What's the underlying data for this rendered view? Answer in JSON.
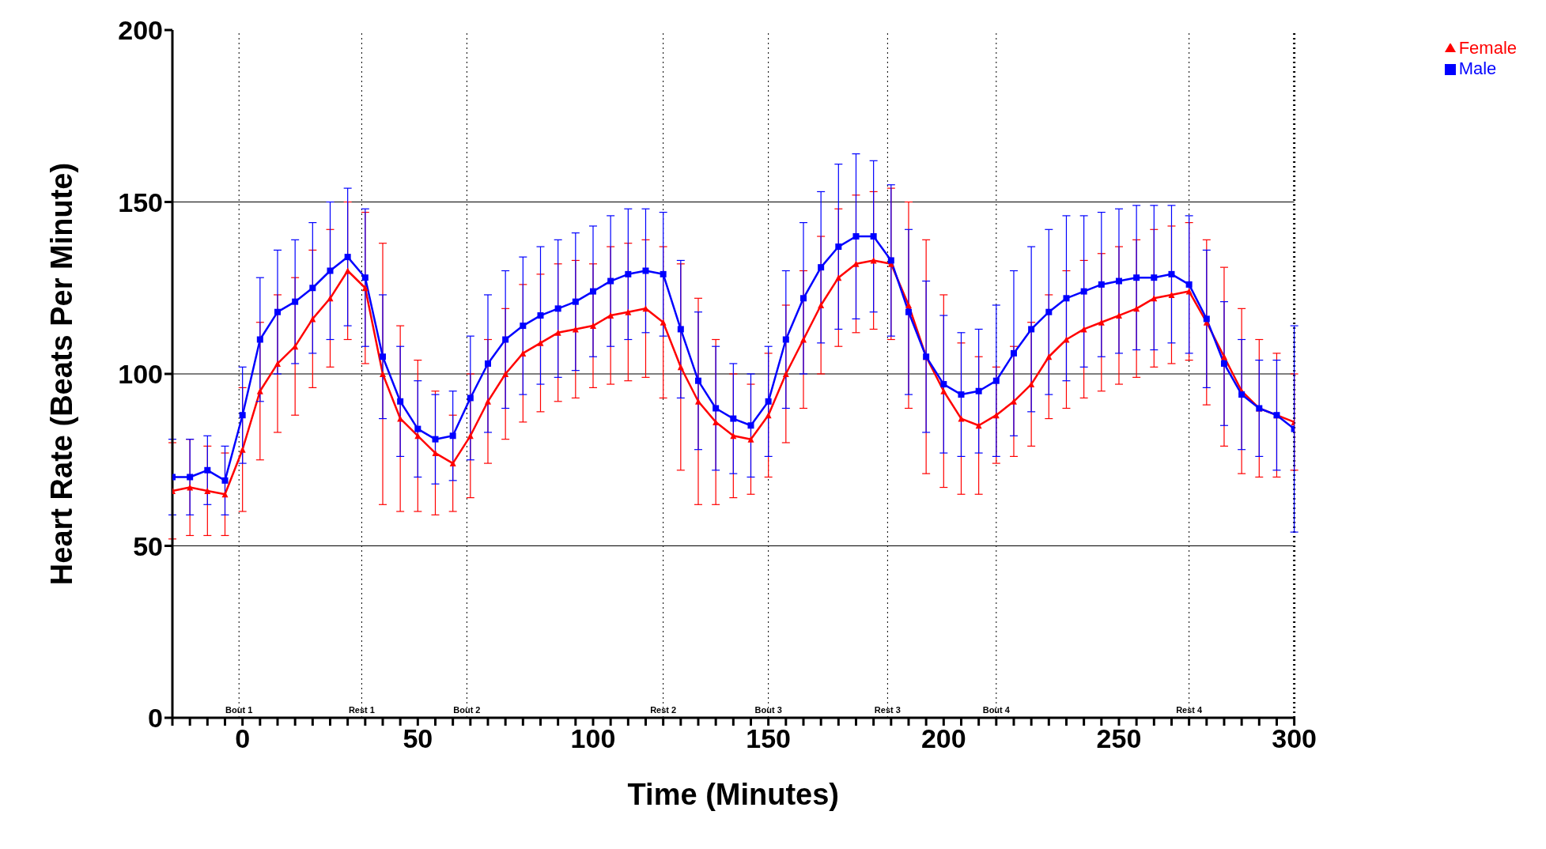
{
  "chart_data": {
    "type": "line",
    "xlabel": "Time  (Minutes)",
    "ylabel": "Heart Rate  (Beats Per  Minute)",
    "x": [
      -20,
      -15,
      -10,
      -5,
      0,
      5,
      10,
      15,
      20,
      25,
      30,
      35,
      40,
      45,
      50,
      55,
      60,
      65,
      70,
      75,
      80,
      85,
      90,
      95,
      100,
      105,
      110,
      115,
      120,
      125,
      130,
      135,
      140,
      145,
      150,
      155,
      160,
      165,
      170,
      175,
      180,
      185,
      190,
      195,
      200,
      205,
      210,
      215,
      220,
      225,
      230,
      235,
      240,
      245,
      250,
      255,
      260,
      265,
      270,
      275,
      280,
      285,
      290,
      295,
      300
    ],
    "series": [
      {
        "name": "Female",
        "color": "#ff0000",
        "marker": "triangle",
        "values": [
          66,
          67,
          66,
          65,
          78,
          95,
          103,
          108,
          116,
          122,
          130,
          125,
          100,
          87,
          82,
          77,
          74,
          82,
          92,
          100,
          106,
          109,
          112,
          113,
          114,
          117,
          118,
          119,
          115,
          102,
          92,
          86,
          82,
          81,
          88,
          100,
          110,
          120,
          128,
          132,
          133,
          132,
          120,
          105,
          95,
          87,
          85,
          88,
          92,
          97,
          105,
          110,
          113,
          115,
          117,
          119,
          122,
          123,
          124,
          115,
          105,
          95,
          90,
          88,
          86
        ],
        "errors": [
          14,
          14,
          13,
          12,
          18,
          20,
          20,
          20,
          20,
          20,
          20,
          22,
          38,
          27,
          22,
          18,
          14,
          18,
          18,
          19,
          20,
          20,
          20,
          20,
          18,
          20,
          20,
          20,
          22,
          30,
          30,
          24,
          18,
          16,
          18,
          20,
          20,
          20,
          20,
          20,
          20,
          22,
          30,
          34,
          28,
          22,
          20,
          14,
          16,
          18,
          18,
          20,
          20,
          20,
          20,
          20,
          20,
          20,
          20,
          24,
          26,
          24,
          20,
          18,
          14
        ]
      },
      {
        "name": "Male",
        "color": "#0000ff",
        "marker": "square",
        "values": [
          70,
          70,
          72,
          69,
          88,
          110,
          118,
          121,
          125,
          130,
          134,
          128,
          105,
          92,
          84,
          81,
          82,
          93,
          103,
          110,
          114,
          117,
          119,
          121,
          124,
          127,
          129,
          130,
          129,
          113,
          98,
          90,
          87,
          85,
          92,
          110,
          122,
          131,
          137,
          140,
          140,
          133,
          118,
          105,
          97,
          94,
          95,
          98,
          106,
          113,
          118,
          122,
          124,
          126,
          127,
          128,
          128,
          129,
          126,
          116,
          103,
          94,
          90,
          88,
          84
        ],
        "errors": [
          11,
          11,
          10,
          10,
          14,
          18,
          18,
          18,
          19,
          20,
          20,
          20,
          18,
          16,
          14,
          13,
          13,
          18,
          20,
          20,
          20,
          20,
          20,
          20,
          19,
          19,
          19,
          18,
          18,
          20,
          20,
          18,
          16,
          15,
          16,
          20,
          22,
          22,
          24,
          24,
          22,
          22,
          24,
          22,
          20,
          18,
          18,
          22,
          24,
          24,
          24,
          24,
          22,
          21,
          21,
          21,
          21,
          20,
          20,
          20,
          18,
          16,
          14,
          16,
          30
        ]
      }
    ],
    "xlim": [
      -20,
      300
    ],
    "xticks": [
      {
        "value": -20,
        "label": null
      },
      {
        "value": -15,
        "label": null
      },
      {
        "value": -10,
        "label": null
      },
      {
        "value": -5,
        "label": null
      },
      0,
      {
        "value": 5,
        "label": null
      },
      {
        "value": 10,
        "label": null
      },
      {
        "value": 15,
        "label": null
      },
      {
        "value": 20,
        "label": null
      },
      {
        "value": 25,
        "label": null
      },
      {
        "value": 30,
        "label": null
      },
      {
        "value": 35,
        "label": null
      },
      {
        "value": 40,
        "label": null
      },
      {
        "value": 45,
        "label": null
      },
      50,
      {
        "value": 55,
        "label": null
      },
      {
        "value": 60,
        "label": null
      },
      {
        "value": 65,
        "label": null
      },
      {
        "value": 70,
        "label": null
      },
      {
        "value": 75,
        "label": null
      },
      {
        "value": 80,
        "label": null
      },
      {
        "value": 85,
        "label": null
      },
      {
        "value": 90,
        "label": null
      },
      {
        "value": 95,
        "label": null
      },
      100,
      {
        "value": 105,
        "label": null
      },
      {
        "value": 110,
        "label": null
      },
      {
        "value": 115,
        "label": null
      },
      {
        "value": 120,
        "label": null
      },
      {
        "value": 125,
        "label": null
      },
      {
        "value": 130,
        "label": null
      },
      {
        "value": 135,
        "label": null
      },
      {
        "value": 140,
        "label": null
      },
      {
        "value": 145,
        "label": null
      },
      150,
      {
        "value": 155,
        "label": null
      },
      {
        "value": 160,
        "label": null
      },
      {
        "value": 165,
        "label": null
      },
      {
        "value": 170,
        "label": null
      },
      {
        "value": 175,
        "label": null
      },
      {
        "value": 180,
        "label": null
      },
      {
        "value": 185,
        "label": null
      },
      {
        "value": 190,
        "label": null
      },
      {
        "value": 195,
        "label": null
      },
      200,
      {
        "value": 205,
        "label": null
      },
      {
        "value": 210,
        "label": null
      },
      {
        "value": 215,
        "label": null
      },
      {
        "value": 220,
        "label": null
      },
      {
        "value": 225,
        "label": null
      },
      {
        "value": 230,
        "label": null
      },
      {
        "value": 235,
        "label": null
      },
      {
        "value": 240,
        "label": null
      },
      {
        "value": 245,
        "label": null
      },
      250,
      {
        "value": 255,
        "label": null
      },
      {
        "value": 260,
        "label": null
      },
      {
        "value": 265,
        "label": null
      },
      {
        "value": 270,
        "label": null
      },
      {
        "value": 275,
        "label": null
      },
      {
        "value": 280,
        "label": null
      },
      {
        "value": 285,
        "label": null
      },
      {
        "value": 290,
        "label": null
      },
      {
        "value": 295,
        "label": null
      },
      300
    ],
    "ylim": [
      0,
      200
    ],
    "yticks": [
      0,
      50,
      100,
      150,
      200
    ],
    "grid": "y",
    "legend": "top right",
    "ref_lines": [
      {
        "axis": "x",
        "value": -1,
        "label": "Bout 1",
        "line_style": "dotted"
      },
      {
        "axis": "x",
        "value": 34,
        "label": "Rest 1",
        "line_style": "dotted"
      },
      {
        "axis": "x",
        "value": 64,
        "label": "Bout 2",
        "line_style": "dotted"
      },
      {
        "axis": "x",
        "value": 120,
        "label": "Rest 2",
        "line_style": "dotted"
      },
      {
        "axis": "x",
        "value": 150,
        "label": "Bout 3",
        "line_style": "dotted"
      },
      {
        "axis": "x",
        "value": 184,
        "label": "Rest 3",
        "line_style": "dotted"
      },
      {
        "axis": "x",
        "value": 215,
        "label": "Bout 4",
        "line_style": "dotted"
      },
      {
        "axis": "x",
        "value": 270,
        "label": "Rest 4",
        "line_style": "dotted"
      },
      {
        "axis": "x",
        "value": 300,
        "label": null,
        "line_style": "dotted"
      }
    ]
  }
}
